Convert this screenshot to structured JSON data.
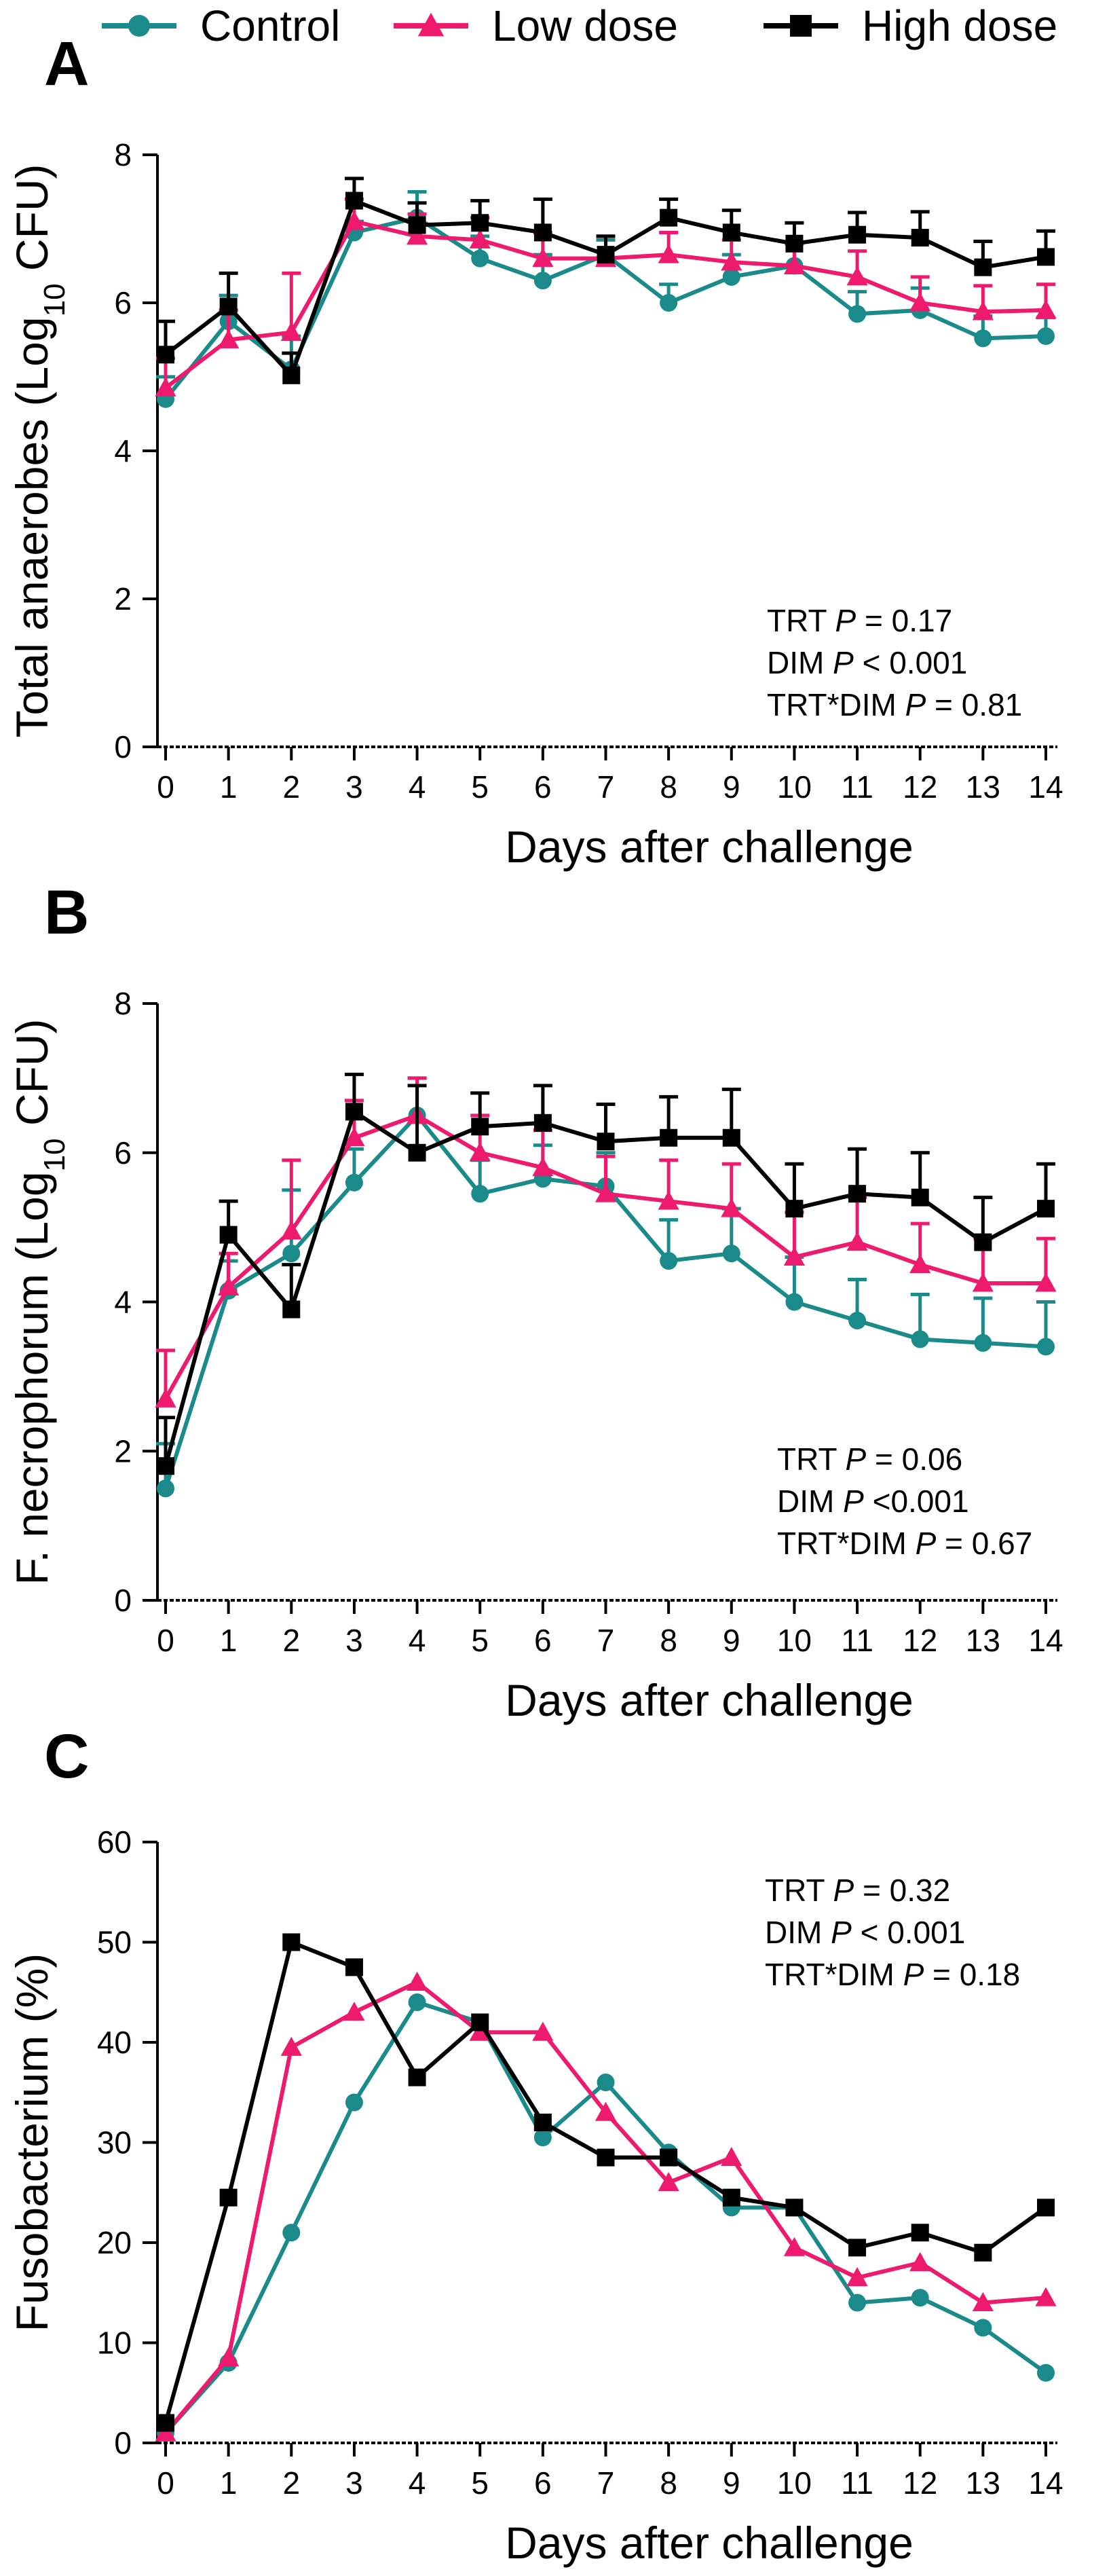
{
  "legend": [
    {
      "label": "Control",
      "color": "#1a8a8a",
      "marker": "circle"
    },
    {
      "label": "Low dose",
      "color": "#ee1a6e",
      "marker": "triangle"
    },
    {
      "label": "High dose",
      "color": "#000000",
      "marker": "square"
    }
  ],
  "chart_data": [
    {
      "panel": "A",
      "type": "line",
      "xlabel": "Days after challenge",
      "ylabel": "Total anaerobes (Log10 CFU)",
      "ylabel_parts": [
        "Total anaerobes (Log",
        "10",
        " CFU)"
      ],
      "x": [
        0,
        1,
        2,
        3,
        4,
        5,
        6,
        7,
        8,
        9,
        10,
        11,
        12,
        13,
        14
      ],
      "ylim": [
        0,
        8
      ],
      "yticks": [
        0,
        2,
        4,
        6,
        8
      ],
      "error_bars": true,
      "series": [
        {
          "name": "Control",
          "values": [
            4.7,
            5.75,
            5.1,
            6.95,
            7.15,
            6.6,
            6.3,
            6.65,
            6.0,
            6.35,
            6.5,
            5.85,
            5.9,
            5.52,
            5.55
          ],
          "errors": [
            0.3,
            0.35,
            0.45,
            0.15,
            0.35,
            0.3,
            0.35,
            0.2,
            0.25,
            0.3,
            0.3,
            0.3,
            0.3,
            0.3,
            0.25
          ]
        },
        {
          "name": "Low dose",
          "values": [
            4.85,
            5.5,
            5.6,
            7.1,
            6.9,
            6.85,
            6.6,
            6.6,
            6.65,
            6.55,
            6.5,
            6.35,
            6.0,
            5.88,
            5.9
          ],
          "errors": [
            0.4,
            0.4,
            0.8,
            0.3,
            0.3,
            0.3,
            0.35,
            0.3,
            0.3,
            0.3,
            0.3,
            0.35,
            0.35,
            0.35,
            0.35
          ]
        },
        {
          "name": "High dose",
          "values": [
            5.3,
            5.95,
            5.02,
            7.38,
            7.05,
            7.08,
            6.95,
            6.65,
            7.15,
            6.95,
            6.8,
            6.92,
            6.88,
            6.48,
            6.62
          ],
          "errors": [
            0.45,
            0.45,
            0.3,
            0.3,
            0.3,
            0.3,
            0.45,
            0.25,
            0.25,
            0.3,
            0.28,
            0.3,
            0.35,
            0.35,
            0.35
          ]
        }
      ],
      "stats": [
        {
          "label": "TRT",
          "p": "P",
          "rel": "= 0.17"
        },
        {
          "label": "DIM",
          "p": "P",
          "rel": "< 0.001"
        },
        {
          "label": "TRT*DIM",
          "p": "P",
          "rel": "= 0.81"
        }
      ]
    },
    {
      "panel": "B",
      "type": "line",
      "xlabel": "Days after challenge",
      "ylabel": "F. necrophorum (Log10 CFU)",
      "ylabel_parts": [
        "F. necrophorum (Log",
        "10",
        " CFU)"
      ],
      "x": [
        0,
        1,
        2,
        3,
        4,
        5,
        6,
        7,
        8,
        9,
        10,
        11,
        12,
        13,
        14
      ],
      "ylim": [
        0,
        8
      ],
      "yticks": [
        0,
        2,
        4,
        6,
        8
      ],
      "error_bars": true,
      "series": [
        {
          "name": "Control",
          "values": [
            1.5,
            4.15,
            4.65,
            5.6,
            6.5,
            5.45,
            5.65,
            5.55,
            4.55,
            4.65,
            4.0,
            3.75,
            3.5,
            3.45,
            3.4
          ],
          "errors": [
            0.6,
            0.4,
            0.85,
            0.45,
            0.5,
            0.45,
            0.45,
            0.45,
            0.55,
            0.6,
            0.6,
            0.55,
            0.6,
            0.6,
            0.6
          ]
        },
        {
          "name": "Low dose",
          "values": [
            2.7,
            4.2,
            4.95,
            6.2,
            6.5,
            6.0,
            5.8,
            5.45,
            5.35,
            5.25,
            4.6,
            4.8,
            4.5,
            4.25,
            4.25
          ],
          "errors": [
            0.65,
            0.45,
            0.95,
            0.5,
            0.5,
            0.5,
            0.5,
            0.5,
            0.55,
            0.6,
            0.6,
            0.6,
            0.55,
            0.6,
            0.6
          ]
        },
        {
          "name": "High dose",
          "values": [
            1.8,
            4.9,
            3.9,
            6.55,
            6.0,
            6.35,
            6.4,
            6.15,
            6.2,
            6.2,
            5.25,
            5.45,
            5.4,
            4.8,
            5.25
          ],
          "errors": [
            0.65,
            0.45,
            0.6,
            0.5,
            0.9,
            0.45,
            0.5,
            0.5,
            0.55,
            0.65,
            0.6,
            0.6,
            0.6,
            0.6,
            0.6
          ]
        }
      ],
      "stats": [
        {
          "label": "TRT",
          "p": "P",
          "rel": "= 0.06"
        },
        {
          "label": "DIM",
          "p": "P",
          "rel": "<0.001"
        },
        {
          "label": "TRT*DIM",
          "p": "P",
          "rel": "= 0.67"
        }
      ]
    },
    {
      "panel": "C",
      "type": "line",
      "xlabel": "Days after challenge",
      "ylabel": "Fusobacterium (%)",
      "ylabel_parts": [
        "Fusobacterium (%)"
      ],
      "x": [
        0,
        1,
        2,
        3,
        4,
        5,
        6,
        7,
        8,
        9,
        10,
        11,
        12,
        13,
        14
      ],
      "ylim": [
        0,
        60
      ],
      "yticks": [
        0,
        10,
        20,
        30,
        40,
        50,
        60
      ],
      "error_bars": false,
      "series": [
        {
          "name": "Control",
          "values": [
            1,
            8,
            21,
            34,
            44,
            42,
            30.5,
            36,
            29,
            23.5,
            23.5,
            14,
            14.5,
            11.5,
            7
          ]
        },
        {
          "name": "Low dose",
          "values": [
            1,
            8.5,
            39.5,
            43,
            46,
            41,
            41,
            33,
            26,
            28.5,
            19.5,
            16.5,
            18,
            14,
            14.5
          ]
        },
        {
          "name": "High dose",
          "values": [
            2,
            24.5,
            50,
            47.5,
            36.5,
            42,
            32,
            28.5,
            28.5,
            24.5,
            23.5,
            19.5,
            21,
            19,
            23.5
          ]
        }
      ],
      "stats": [
        {
          "label": "TRT",
          "p": "P",
          "rel": "= 0.32"
        },
        {
          "label": "DIM",
          "p": "P",
          "rel": " < 0.001"
        },
        {
          "label": "TRT*DIM",
          "p": "P",
          "rel": "= 0.18"
        }
      ]
    }
  ]
}
